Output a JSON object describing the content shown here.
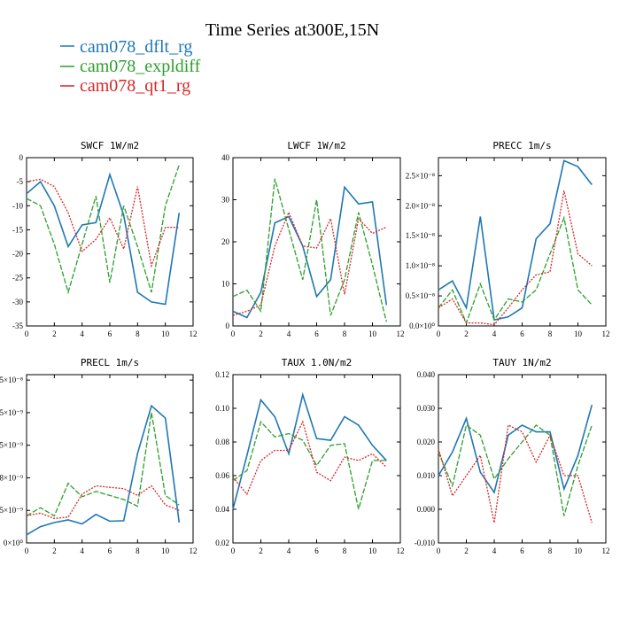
{
  "title": "Time Series at300E,15N",
  "legend": [
    {
      "name": "cam078_dflt_rg",
      "color": "#1f77b4"
    },
    {
      "name": "cam078_expldiff",
      "color": "#2ca02c"
    },
    {
      "name": "cam078_qt1_rg",
      "color": "#d62728"
    }
  ],
  "chart_data": [
    {
      "type": "line",
      "title": "SWCF   1W/m2",
      "x": [
        0,
        1,
        2,
        3,
        4,
        5,
        6,
        7,
        8,
        9,
        10,
        11
      ],
      "xlim": [
        0,
        12
      ],
      "xticks": [
        "0",
        "2",
        "4",
        "6",
        "8",
        "10",
        "12"
      ],
      "ylim": [
        -35,
        0
      ],
      "yticks": [
        "0",
        "-5",
        "-10",
        "-15",
        "-20",
        "-25",
        "-30",
        "-35"
      ],
      "series": [
        {
          "name": "cam078_dflt_rg",
          "values": [
            -7.5,
            -5,
            -10,
            -18.5,
            -14,
            -13.5,
            -3.5,
            -12,
            -28,
            -30,
            -30.5,
            -11.5
          ]
        },
        {
          "name": "cam078_expldiff",
          "values": [
            -8.5,
            -10,
            -18,
            -28,
            -18,
            -8,
            -26,
            -10,
            -18.5,
            -28,
            -10,
            -1.5
          ]
        },
        {
          "name": "cam078_qt1_rg",
          "values": [
            -5,
            -4.5,
            -6,
            -11.5,
            -19.5,
            -17,
            -12.5,
            -19,
            -6,
            -22.5,
            -14.5,
            -14.5
          ]
        }
      ]
    },
    {
      "type": "line",
      "title": "LWCF   1W/m2",
      "x": [
        0,
        1,
        2,
        3,
        4,
        5,
        6,
        7,
        8,
        9,
        10,
        11
      ],
      "xlim": [
        0,
        12
      ],
      "xticks": [
        "0",
        "2",
        "4",
        "6",
        "8",
        "10",
        "12"
      ],
      "ylim": [
        0,
        40
      ],
      "yticks": [
        "0",
        "10",
        "20",
        "30",
        "40"
      ],
      "series": [
        {
          "name": "cam078_dflt_rg",
          "values": [
            3.5,
            2,
            8,
            24.5,
            26,
            19,
            7,
            11,
            33,
            29,
            29.5,
            5
          ]
        },
        {
          "name": "cam078_expldiff",
          "values": [
            7,
            8.5,
            3.5,
            35,
            23,
            11,
            30,
            2.5,
            11,
            27,
            14.5,
            1
          ]
        },
        {
          "name": "cam078_qt1_rg",
          "values": [
            2.5,
            3.5,
            5,
            19,
            27,
            19,
            18.5,
            25.5,
            7.5,
            25.5,
            22,
            23.5
          ]
        }
      ]
    },
    {
      "type": "line",
      "title": "PRECC   1m/s",
      "x": [
        0,
        1,
        2,
        3,
        4,
        5,
        6,
        7,
        8,
        9,
        10,
        11
      ],
      "xlim": [
        0,
        12
      ],
      "xticks": [
        "0",
        "2",
        "4",
        "6",
        "8",
        "10",
        "12"
      ],
      "ylim": [
        0,
        2.8
      ],
      "ytick_values": [
        0.5,
        1.0,
        1.5,
        2.0,
        2.5
      ],
      "yticks": [
        "0.5×10⁻⁸",
        "1.0×10⁻⁸",
        "1.5×10⁻⁸",
        "2.0×10⁻⁸",
        "2.5×10⁻⁸"
      ],
      "ylabel_zero": "0.0×10⁰",
      "series": [
        {
          "name": "cam078_dflt_rg",
          "values": [
            0.6,
            0.75,
            0.3,
            1.82,
            0.1,
            0.15,
            0.3,
            1.45,
            1.7,
            2.75,
            2.65,
            2.35
          ]
        },
        {
          "name": "cam078_expldiff",
          "values": [
            0.3,
            0.6,
            0.05,
            0.7,
            0.1,
            0.45,
            0.4,
            0.6,
            1.2,
            1.8,
            0.6,
            0.35
          ]
        },
        {
          "name": "cam078_qt1_rg",
          "values": [
            0.3,
            0.45,
            0.05,
            0.05,
            0.02,
            0.3,
            0.6,
            0.85,
            0.9,
            2.25,
            1.2,
            1.0
          ]
        }
      ]
    },
    {
      "type": "line",
      "title": "PRECL   1m/s",
      "x": [
        0,
        1,
        2,
        3,
        4,
        5,
        6,
        7,
        8,
        9,
        10,
        11
      ],
      "xlim": [
        0,
        12
      ],
      "xticks": [
        "0",
        "2",
        "4",
        "6",
        "8",
        "10",
        "12"
      ],
      "ylim": [
        0,
        6.2
      ],
      "ytick_values": [
        0,
        1.2,
        2.4,
        3.6,
        4.8,
        6.0
      ],
      "yticks": [
        "0×10⁰",
        "5×10⁻⁹",
        "8×10⁻⁹",
        "5×10⁻⁹",
        "5×10⁻⁹",
        "5×10⁻⁸"
      ],
      "series": [
        {
          "name": "cam078_dflt_rg",
          "values": [
            0.3,
            0.6,
            0.75,
            0.85,
            0.7,
            1.05,
            0.8,
            0.82,
            3.3,
            5.05,
            4.6,
            0.75
          ]
        },
        {
          "name": "cam078_expldiff",
          "values": [
            1.0,
            1.3,
            1.0,
            2.2,
            1.7,
            1.9,
            1.75,
            1.6,
            1.35,
            4.8,
            1.75,
            1.4
          ]
        },
        {
          "name": "cam078_qt1_rg",
          "values": [
            1.0,
            1.1,
            0.9,
            0.95,
            1.8,
            2.1,
            2.05,
            2.0,
            1.75,
            2.1,
            1.4,
            1.2
          ]
        }
      ]
    },
    {
      "type": "line",
      "title": "TAUX   1.0N/m2",
      "x": [
        0,
        1,
        2,
        3,
        4,
        5,
        6,
        7,
        8,
        9,
        10,
        11
      ],
      "xlim": [
        0,
        12
      ],
      "xticks": [
        "0",
        "2",
        "4",
        "6",
        "8",
        "10",
        "12"
      ],
      "ylim": [
        0.02,
        0.12
      ],
      "yticks": [
        "0.02",
        "0.04",
        "0.06",
        "0.08",
        "0.10",
        "0.12"
      ],
      "series": [
        {
          "name": "cam078_dflt_rg",
          "values": [
            0.04,
            0.072,
            0.105,
            0.095,
            0.073,
            0.108,
            0.082,
            0.081,
            0.095,
            0.09,
            0.078,
            0.069
          ]
        },
        {
          "name": "cam078_expldiff",
          "values": [
            0.057,
            0.063,
            0.092,
            0.083,
            0.085,
            0.081,
            0.066,
            0.078,
            0.079,
            0.04,
            0.069,
            0.069
          ]
        },
        {
          "name": "cam078_qt1_rg",
          "values": [
            0.059,
            0.049,
            0.069,
            0.075,
            0.075,
            0.092,
            0.062,
            0.057,
            0.071,
            0.069,
            0.073,
            0.065
          ]
        }
      ]
    },
    {
      "type": "line",
      "title": "TAUY   1N/m2",
      "x": [
        0,
        1,
        2,
        3,
        4,
        5,
        6,
        7,
        8,
        9,
        10,
        11
      ],
      "xlim": [
        0,
        12
      ],
      "xticks": [
        "0",
        "2",
        "4",
        "6",
        "8",
        "10",
        "12"
      ],
      "ylim": [
        -0.01,
        0.04
      ],
      "yticks": [
        "-0.010",
        "0.000",
        "0.010",
        "0.020",
        "0.030",
        "0.040"
      ],
      "series": [
        {
          "name": "cam078_dflt_rg",
          "values": [
            0.01,
            0.017,
            0.027,
            0.011,
            0.005,
            0.022,
            0.025,
            0.023,
            0.023,
            0.006,
            0.016,
            0.031
          ]
        },
        {
          "name": "cam078_expldiff",
          "values": [
            0.017,
            0.007,
            0.025,
            0.022,
            0.009,
            0.015,
            0.02,
            0.025,
            0.022,
            -0.002,
            0.013,
            0.025
          ]
        },
        {
          "name": "cam078_qt1_rg",
          "values": [
            0.018,
            0.004,
            0.01,
            0.016,
            -0.004,
            0.025,
            0.023,
            0.014,
            0.022,
            0.01,
            0.01,
            -0.004
          ]
        }
      ]
    }
  ]
}
